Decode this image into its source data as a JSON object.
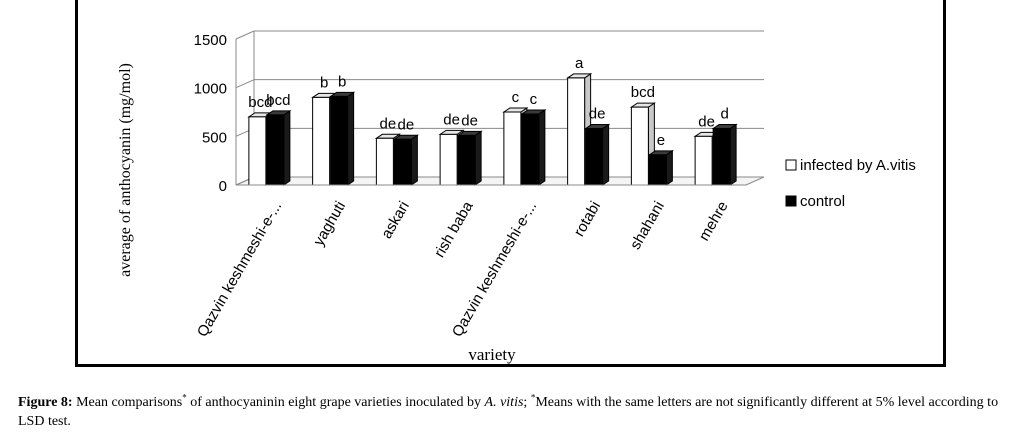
{
  "chart_data": {
    "type": "bar",
    "title": "Mean comparisons of anthocyanin in eight grape varieties inoculated by A. vitis",
    "xlabel": "variety",
    "ylabel": "average of anthocyanin (mg/mol)",
    "ylim": [
      0,
      1500
    ],
    "yticks": [
      0,
      500,
      1000,
      1500
    ],
    "grid": true,
    "legend_position": "right",
    "categories": [
      "Qazvin keshmeshi-e-...",
      "yaghuti",
      "askari",
      "rish baba",
      "Qazvin keshmeshi-e-...",
      "rotabi",
      "shahani",
      "mehre"
    ],
    "series": [
      {
        "name": "infected by A.vitis",
        "color": "#ffffff",
        "values": [
          700,
          900,
          480,
          520,
          750,
          1100,
          800,
          500
        ],
        "letters": [
          "bcd",
          "b",
          "de",
          "de",
          "c",
          "a",
          "bcd",
          "de"
        ]
      },
      {
        "name": "control",
        "color": "#000000",
        "values": [
          720,
          910,
          470,
          510,
          730,
          580,
          310,
          580
        ],
        "letters": [
          "bcd",
          "b",
          "de",
          "de",
          "c",
          "de",
          "e",
          "d"
        ]
      }
    ]
  },
  "caption": {
    "label": "Figure 8:",
    "part1": " Mean comparisons",
    "star": "*",
    "part2": " of anthocyaninin eight grape varieties inoculated by ",
    "organism": "A. vitis",
    "part3": "; ",
    "part4": "Means with the same letters are not significantly different at 5% level according to LSD test."
  }
}
